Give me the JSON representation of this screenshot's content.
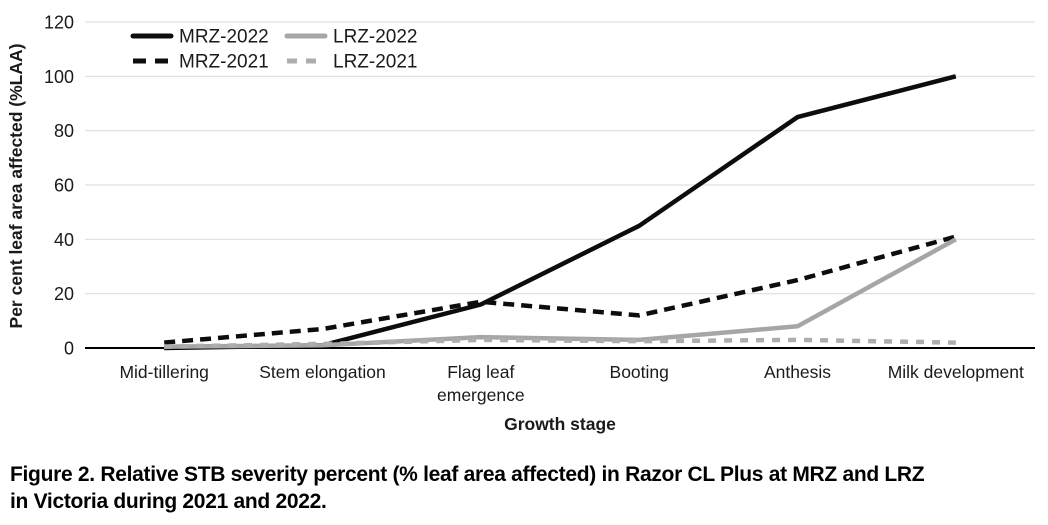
{
  "figure": {
    "caption_line1": "Figure 2. Relative STB severity percent (% leaf area affected) in Razor CL Plus at MRZ and LRZ",
    "caption_line2": "in Victoria during 2021 and 2022."
  },
  "chart_data": {
    "type": "line",
    "title": "",
    "xlabel": "Growth stage",
    "ylabel": "Per cent leaf area affected (%LAA)",
    "categories": [
      "Mid-tillering",
      "Stem elongation",
      "Flag leaf emergence",
      "Booting",
      "Anthesis",
      "Milk development"
    ],
    "series": [
      {
        "name": "MRZ-2022",
        "style": "solid",
        "color": "#0d0d0d",
        "values": [
          0,
          1,
          16,
          45,
          85,
          100
        ]
      },
      {
        "name": "MRZ-2021",
        "style": "dashed",
        "color": "#0d0d0d",
        "values": [
          2,
          7,
          17,
          12,
          25,
          41
        ]
      },
      {
        "name": "LRZ-2022",
        "style": "solid",
        "color": "#a6a6a6",
        "values": [
          0.5,
          1,
          4,
          3,
          8,
          40
        ]
      },
      {
        "name": "LRZ-2021",
        "style": "dashed",
        "color": "#adadad",
        "values": [
          0.5,
          1.5,
          3,
          2.5,
          3,
          2
        ]
      }
    ],
    "ylim": [
      0,
      120
    ],
    "ytick_step": 20,
    "yticks": [
      0,
      20,
      40,
      60,
      80,
      100,
      120
    ],
    "grid": true,
    "legend_position": "top-left-inside",
    "legend_order": [
      "MRZ-2022",
      "LRZ-2022",
      "MRZ-2021",
      "LRZ-2021"
    ],
    "colors": {
      "gridline": "#d9d9d9",
      "axis_line": "#000000",
      "text": "#1a1a1a"
    }
  }
}
